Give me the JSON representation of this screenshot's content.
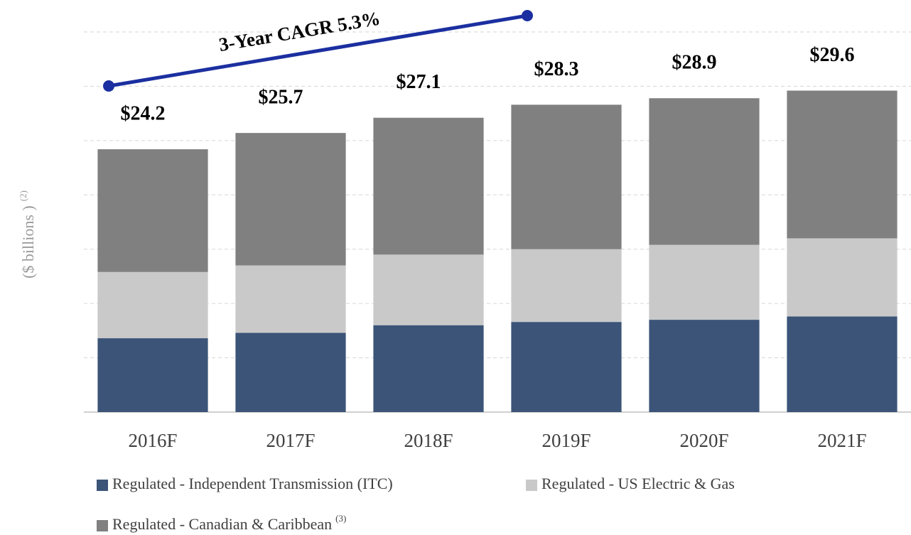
{
  "chart_data": {
    "type": "stacked_bar",
    "y_label": "($ billions )",
    "y_label_note": "(2)",
    "annotation": "3-Year CAGR 5.3%",
    "categories": [
      "2016F",
      "2017F",
      "2018F",
      "2019F",
      "2020F",
      "2021F"
    ],
    "series": [
      {
        "name": "Regulated - Independent Transmission (ITC)",
        "color": "#3b5478",
        "values": [
          6.8,
          7.3,
          8.0,
          8.3,
          8.5,
          8.8
        ]
      },
      {
        "name": "Regulated - US Electric & Gas",
        "color": "#c9c9c9",
        "values": [
          6.1,
          6.2,
          6.5,
          6.7,
          6.9,
          7.2
        ]
      },
      {
        "name": "Regulated - Canadian & Caribbean",
        "note": "(3)",
        "color": "#808080",
        "values": [
          11.3,
          12.2,
          12.6,
          13.3,
          13.5,
          13.6
        ]
      }
    ],
    "totals": [
      24.2,
      25.7,
      27.1,
      28.3,
      28.9,
      29.6
    ],
    "total_labels": [
      "$24.2",
      "$25.7",
      "$27.1",
      "$28.3",
      "$28.9",
      "$29.6"
    ],
    "ylim": [
      0,
      35
    ],
    "yticks": [
      0,
      5,
      10,
      15,
      20,
      25,
      30,
      35
    ],
    "grid": true
  }
}
